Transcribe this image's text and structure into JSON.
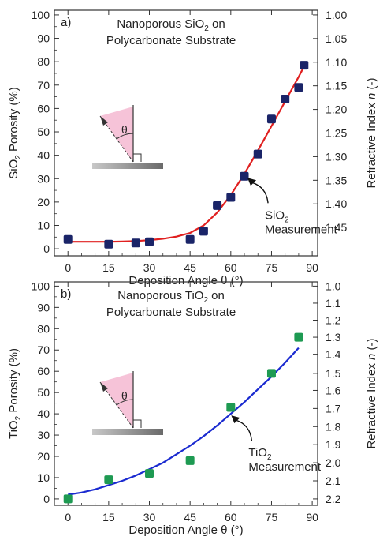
{
  "chart_data": [
    {
      "type": "scatter",
      "panel_label": "a)",
      "title_line1": "Nanoporous SiO",
      "title_sub": "2",
      "title_line1_end": " on",
      "title_line2": "Polycarbonate Substrate",
      "xlabel": "Deposition Angle θ (°)",
      "ylabel_pre": "SiO",
      "ylabel_sub": "2",
      "ylabel_post": "  Porosity (%)",
      "y2label_pre": "Refractive Index ",
      "y2label_italic": "n",
      "y2label_post": " (-)",
      "xlim": [
        -5,
        92
      ],
      "ylim": [
        -3,
        102
      ],
      "xticks": [
        0,
        15,
        30,
        45,
        60,
        75,
        90
      ],
      "yticks": [
        0,
        10,
        20,
        30,
        40,
        50,
        60,
        70,
        80,
        90,
        100
      ],
      "y2ticks": [
        {
          "label": "1.00",
          "y": 100
        },
        {
          "label": "1.05",
          "y": 89.9
        },
        {
          "label": "1.10",
          "y": 79.8
        },
        {
          "label": "1.15",
          "y": 69.7
        },
        {
          "label": "1.20",
          "y": 59.6
        },
        {
          "label": "1.25",
          "y": 49.5
        },
        {
          "label": "1.30",
          "y": 39.4
        },
        {
          "label": "1.35",
          "y": 29.3
        },
        {
          "label": "1.40",
          "y": 19.2
        },
        {
          "label": "1.45",
          "y": 9.1
        }
      ],
      "markers_color": "#1a2468",
      "curve_color": "#e02020",
      "measurement": {
        "x": [
          0,
          15,
          25,
          30,
          45,
          50,
          55,
          60,
          65,
          70,
          75,
          80,
          85,
          87
        ],
        "y": [
          4,
          2,
          2.5,
          3,
          4,
          7.5,
          18.5,
          22,
          31,
          40.5,
          55.5,
          64,
          69,
          78.5
        ]
      },
      "fit": {
        "x": [
          0,
          5,
          10,
          15,
          20,
          25,
          30,
          35,
          40,
          45,
          50,
          55,
          60,
          65,
          70,
          75,
          80,
          85,
          87
        ],
        "y": [
          3,
          3,
          3,
          3,
          3.1,
          3.3,
          3.7,
          4.3,
          5.2,
          6.8,
          10,
          15.5,
          23,
          32,
          42,
          52.5,
          63,
          73.5,
          78
        ]
      },
      "annotation": {
        "line1_pre": "SiO",
        "line1_sub": "2",
        "line2": "Measurement",
        "arrow_to": [
          65,
          31
        ]
      }
    },
    {
      "type": "scatter",
      "panel_label": "b)",
      "title_line1": "Nanoporous TiO",
      "title_sub": "2",
      "title_line1_end": " on",
      "title_line2": "Polycarbonate Substrate",
      "xlabel": "Deposition Angle θ (°)",
      "ylabel_pre": "TiO",
      "ylabel_sub": "2",
      "ylabel_post": " Porosity (%)",
      "y2label_pre": "Refractive Index ",
      "y2label_italic": "n",
      "y2label_post": " (-)",
      "xlim": [
        -5,
        92
      ],
      "ylim": [
        -3,
        102
      ],
      "xticks": [
        0,
        15,
        30,
        45,
        60,
        75,
        90
      ],
      "yticks": [
        0,
        10,
        20,
        30,
        40,
        50,
        60,
        70,
        80,
        90,
        100
      ],
      "y2ticks": [
        {
          "label": "1.0",
          "y": 100
        },
        {
          "label": "1.1",
          "y": 92
        },
        {
          "label": "1.2",
          "y": 84
        },
        {
          "label": "1.3",
          "y": 76
        },
        {
          "label": "1.4",
          "y": 68
        },
        {
          "label": "1.5",
          "y": 59
        },
        {
          "label": "1.6",
          "y": 51
        },
        {
          "label": "1.7",
          "y": 42.5
        },
        {
          "label": "1.8",
          "y": 34
        },
        {
          "label": "1.9",
          "y": 25.5
        },
        {
          "label": "2.0",
          "y": 17
        },
        {
          "label": "2.1",
          "y": 8.5
        },
        {
          "label": "2.2",
          "y": 0
        }
      ],
      "markers_color": "#1e9a52",
      "curve_color": "#1a2ad0",
      "measurement": {
        "x": [
          0,
          15,
          30,
          45,
          60,
          75,
          85
        ],
        "y": [
          0,
          9,
          12,
          18,
          43,
          59,
          76
        ]
      },
      "fit": {
        "x": [
          0,
          5,
          10,
          15,
          20,
          25,
          30,
          35,
          40,
          45,
          50,
          55,
          60,
          65,
          70,
          75,
          80,
          85
        ],
        "y": [
          2,
          3,
          4.5,
          6.5,
          8.5,
          11,
          14,
          17,
          21,
          25,
          29.5,
          34.5,
          40,
          45.5,
          51.5,
          57.5,
          64,
          71
        ]
      },
      "annotation": {
        "line1_pre": "TiO",
        "line1_sub": "2",
        "line2": "Measurement",
        "arrow_to": [
          59,
          40
        ]
      }
    }
  ]
}
